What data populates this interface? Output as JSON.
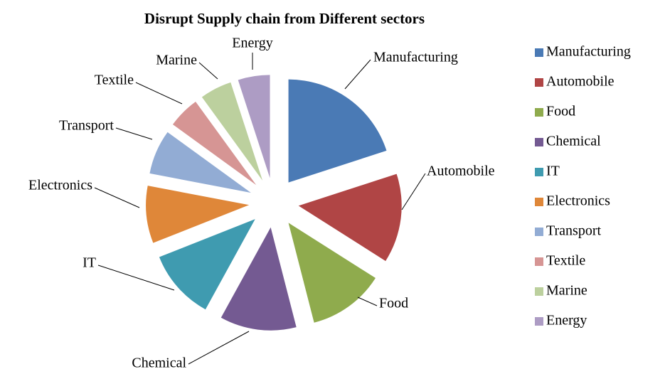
{
  "chart_data": {
    "type": "pie",
    "title": "Disrupt Supply chain from Different sectors",
    "categories": [
      "Manufacturing",
      "Automobile",
      "Food",
      "Chemical",
      "IT",
      "Electronics",
      "Transport",
      "Textile",
      "Marine",
      "Energy"
    ],
    "values": [
      20,
      14,
      12,
      12,
      11,
      9,
      7,
      5,
      5,
      5
    ],
    "colors": [
      "#4a7ab5",
      "#b04545",
      "#8fab4d",
      "#745a92",
      "#3f9bb0",
      "#df8739",
      "#92acd4",
      "#d69594",
      "#bcd09e",
      "#ad9cc4"
    ],
    "legend": "right"
  }
}
